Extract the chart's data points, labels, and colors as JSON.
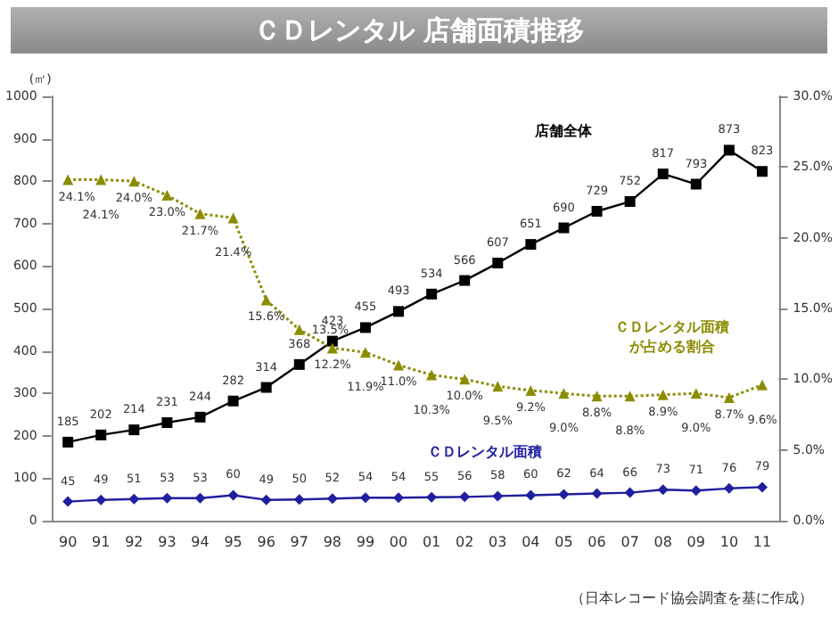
{
  "chart_data": {
    "type": "line",
    "title": "ＣＤレンタル 店舗面積推移",
    "ylabel": "(㎡)",
    "annotations": [
      "（日本レコード協会調査を基に作成）"
    ],
    "categories": [
      "90",
      "91",
      "92",
      "93",
      "94",
      "95",
      "96",
      "97",
      "98",
      "99",
      "00",
      "01",
      "02",
      "03",
      "04",
      "05",
      "06",
      "07",
      "08",
      "09",
      "10",
      "11"
    ],
    "ylim": [
      0,
      1000
    ],
    "yticks": [
      0,
      100,
      200,
      300,
      400,
      500,
      600,
      700,
      800,
      900,
      1000
    ],
    "y2lim": [
      0,
      30
    ],
    "y2ticks": [
      {
        "value": 0,
        "label": "0.0%"
      },
      {
        "value": 5,
        "label": "5.0%"
      },
      {
        "value": 10,
        "label": "10.0%"
      },
      {
        "value": 15,
        "label": "15.0%"
      },
      {
        "value": 20,
        "label": "20.0%"
      },
      {
        "value": 25,
        "label": "25.0%"
      },
      {
        "value": 30,
        "label": "30.0%"
      }
    ],
    "grid": false,
    "legend": false,
    "data_labels": true,
    "series": [
      {
        "name": "店舗全体",
        "color": "#000000",
        "marker": "square",
        "line_style": "solid",
        "values": [
          185,
          202,
          214,
          231,
          244,
          282,
          314,
          368,
          423,
          455,
          493,
          534,
          566,
          607,
          651,
          690,
          729,
          752,
          817,
          793,
          873,
          823
        ]
      },
      {
        "name": "ＣＤレンタル面積",
        "color": "#1f1f9f",
        "marker": "diamond",
        "line_style": "solid",
        "values": [
          45,
          49,
          51,
          53,
          53,
          60,
          49,
          50,
          52,
          54,
          54,
          55,
          56,
          58,
          60,
          62,
          64,
          66,
          73,
          71,
          76,
          79
        ]
      },
      {
        "name": "ＣＤレンタル面積が占める割合",
        "color": "#8c8c00",
        "marker": "triangle",
        "line_style": "dotted",
        "axis": "y2",
        "values": [
          24.1,
          24.1,
          24.0,
          23.0,
          21.7,
          21.4,
          15.6,
          13.5,
          12.2,
          11.9,
          11.0,
          10.3,
          10.0,
          9.5,
          9.2,
          9.0,
          8.8,
          8.8,
          8.9,
          9.0,
          8.7,
          9.6
        ],
        "value_labels": [
          "24.1%",
          "24.1%",
          "24.0%",
          "23.0%",
          "21.7%",
          "21.4%",
          "15.6%",
          "13.5%",
          "12.2%",
          "11.9%",
          "11.0%",
          "10.3%",
          "10.0%",
          "9.5%",
          "9.2%",
          "9.0%",
          "8.8%",
          "8.8%",
          "8.9%",
          "9.0%",
          "8.7%",
          "9.6%"
        ]
      }
    ]
  }
}
